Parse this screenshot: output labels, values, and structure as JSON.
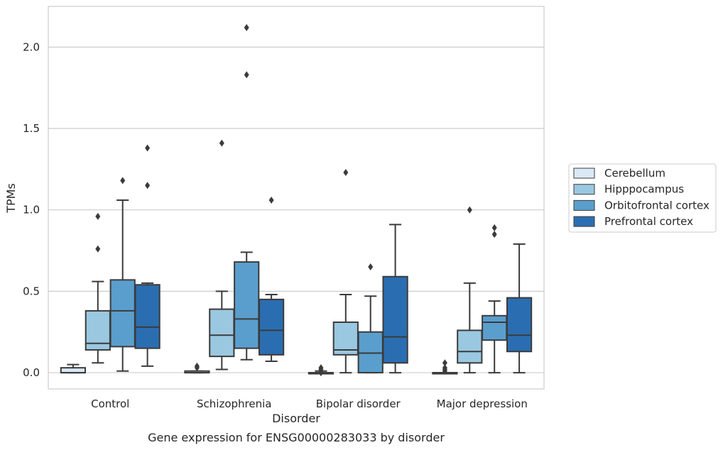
{
  "chart_data": {
    "type": "boxplot",
    "title": "",
    "caption": "Gene expression for ENSG00000283033 by disorder",
    "xlabel": "Disorder",
    "ylabel": "TPMs",
    "ylim": [
      -0.1,
      2.25
    ],
    "yticks": [
      0.0,
      0.5,
      1.0,
      1.5,
      2.0
    ],
    "ytick_labels": [
      "0.0",
      "0.5",
      "1.0",
      "1.5",
      "2.0"
    ],
    "grid": "horizontal",
    "legend_placement": "right",
    "categories": [
      "Control",
      "Schizophrenia",
      "Bipolar disorder",
      "Major depression"
    ],
    "series": [
      {
        "name": "Cerebellum",
        "color": "#dbe9f6",
        "boxes": [
          {
            "whislo": 0.0,
            "q1": 0.0,
            "med": 0.0,
            "q3": 0.03,
            "whishi": 0.05,
            "fliers": []
          },
          {
            "whislo": 0.0,
            "q1": 0.0,
            "med": 0.0,
            "q3": 0.01,
            "whishi": 0.01,
            "fliers": [
              0.03,
              0.04
            ]
          },
          {
            "whislo": 0.0,
            "q1": 0.0,
            "med": 0.0,
            "q3": 0.0,
            "whishi": 0.01,
            "fliers": [
              0.0,
              0.01,
              0.02,
              0.03
            ]
          },
          {
            "whislo": 0.0,
            "q1": 0.0,
            "med": 0.0,
            "q3": 0.0,
            "whishi": 0.0,
            "fliers": [
              0.01,
              0.02,
              0.03,
              0.06
            ]
          }
        ]
      },
      {
        "name": "Hipppocampus",
        "color": "#9ac8e0",
        "boxes": [
          {
            "whislo": 0.06,
            "q1": 0.14,
            "med": 0.18,
            "q3": 0.38,
            "whishi": 0.56,
            "fliers": [
              0.76,
              0.96
            ]
          },
          {
            "whislo": 0.02,
            "q1": 0.1,
            "med": 0.23,
            "q3": 0.39,
            "whishi": 0.5,
            "fliers": [
              1.41
            ]
          },
          {
            "whislo": 0.0,
            "q1": 0.11,
            "med": 0.14,
            "q3": 0.31,
            "whishi": 0.48,
            "fliers": [
              1.23
            ]
          },
          {
            "whislo": 0.0,
            "q1": 0.06,
            "med": 0.13,
            "q3": 0.26,
            "whishi": 0.55,
            "fliers": [
              1.0
            ]
          }
        ]
      },
      {
        "name": "Orbitofrontal cortex",
        "color": "#5a9ecd",
        "boxes": [
          {
            "whislo": 0.01,
            "q1": 0.16,
            "med": 0.38,
            "q3": 0.57,
            "whishi": 1.06,
            "fliers": [
              1.18
            ]
          },
          {
            "whislo": 0.08,
            "q1": 0.15,
            "med": 0.33,
            "q3": 0.68,
            "whishi": 0.74,
            "fliers": [
              1.83,
              2.12
            ]
          },
          {
            "whislo": 0.0,
            "q1": 0.0,
            "med": 0.12,
            "q3": 0.25,
            "whishi": 0.47,
            "fliers": [
              0.65
            ]
          },
          {
            "whislo": 0.0,
            "q1": 0.2,
            "med": 0.31,
            "q3": 0.35,
            "whishi": 0.44,
            "fliers": [
              0.85,
              0.89
            ]
          }
        ]
      },
      {
        "name": "Prefrontal cortex",
        "color": "#2a6eb1",
        "boxes": [
          {
            "whislo": 0.04,
            "q1": 0.15,
            "med": 0.28,
            "q3": 0.54,
            "whishi": 0.55,
            "fliers": [
              1.15,
              1.38
            ]
          },
          {
            "whislo": 0.07,
            "q1": 0.11,
            "med": 0.26,
            "q3": 0.45,
            "whishi": 0.48,
            "fliers": [
              1.06
            ]
          },
          {
            "whislo": 0.0,
            "q1": 0.06,
            "med": 0.22,
            "q3": 0.59,
            "whishi": 0.91,
            "fliers": []
          },
          {
            "whislo": 0.0,
            "q1": 0.13,
            "med": 0.23,
            "q3": 0.46,
            "whishi": 0.79,
            "fliers": []
          }
        ]
      }
    ]
  }
}
